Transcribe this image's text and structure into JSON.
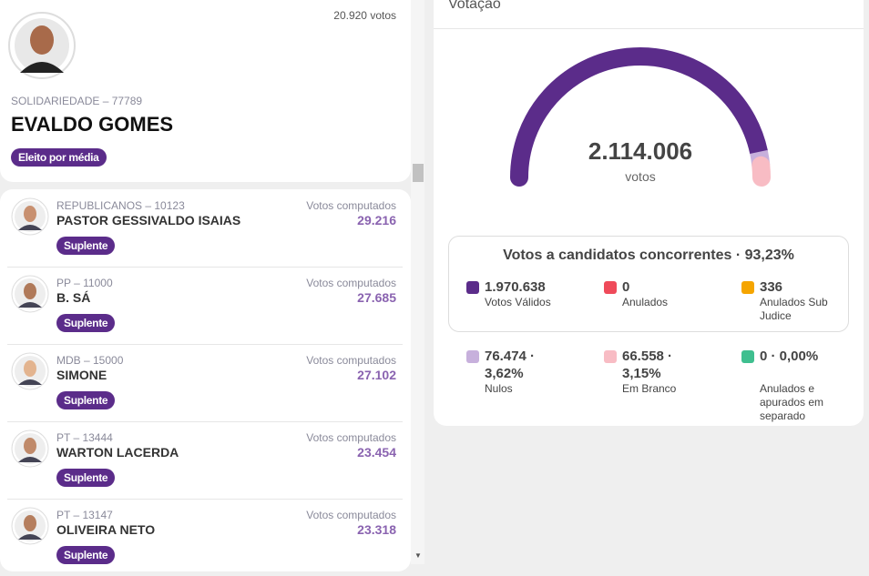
{
  "featured": {
    "votes": "20.920 votos",
    "party": "SOLIDARIEDADE – 77789",
    "name": "EVALDO GOMES",
    "status": "Eleito por média"
  },
  "candidates": [
    {
      "party": "REPUBLICANOS – 10123",
      "name": "PASTOR GESSIVALDO ISAIAS",
      "status": "Suplente",
      "votes_label": "Votos computados",
      "votes": "29.216"
    },
    {
      "party": "PP – 11000",
      "name": "B. SÁ",
      "status": "Suplente",
      "votes_label": "Votos computados",
      "votes": "27.685"
    },
    {
      "party": "MDB – 15000",
      "name": "SIMONE",
      "status": "Suplente",
      "votes_label": "Votos computados",
      "votes": "27.102"
    },
    {
      "party": "PT – 13444",
      "name": "WARTON LACERDA",
      "status": "Suplente",
      "votes_label": "Votos computados",
      "votes": "23.454"
    },
    {
      "party": "PT – 13147",
      "name": "OLIVEIRA NETO",
      "status": "Suplente",
      "votes_label": "Votos computados",
      "votes": "23.318"
    }
  ],
  "votacao": {
    "title": "Votação",
    "total": "2.114.006",
    "total_label": "votos",
    "summary_title": "Votos a candidatos concorrentes · 93,23%",
    "items": [
      {
        "value": "1.970.638",
        "label": "Votos Válidos"
      },
      {
        "value": "0",
        "label": "Anulados"
      },
      {
        "value": "336",
        "label": "Anulados Sub Judice"
      },
      {
        "value": "76.474 · 3,62%",
        "label": "Nulos"
      },
      {
        "value": "66.558 · 3,15%",
        "label": "Em Branco"
      },
      {
        "value": "0 · 0,00%",
        "label": "Anulados e apurados em separado"
      }
    ]
  }
}
